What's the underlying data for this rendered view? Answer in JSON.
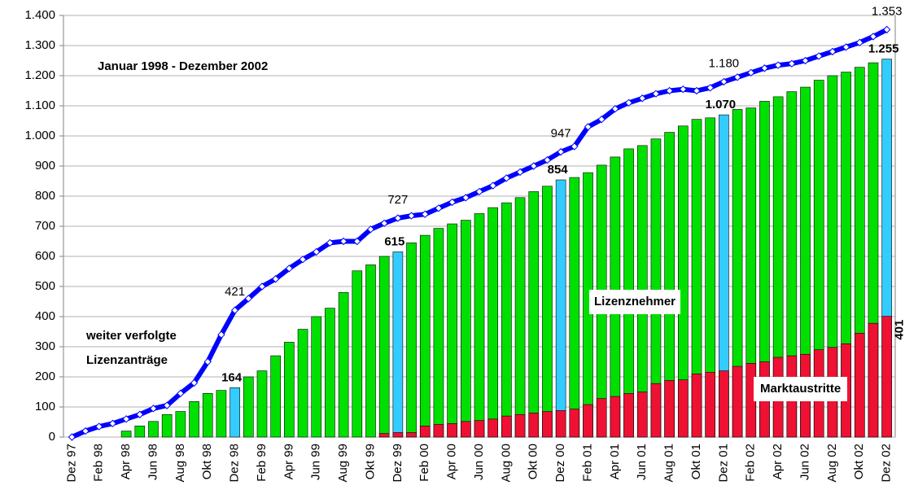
{
  "chart_data": {
    "type": "bar_line",
    "title": "Januar 1998 - Dezember 2002",
    "categories": [
      "Dez 97",
      null,
      "Feb 98",
      null,
      "Apr 98",
      null,
      "Jun 98",
      null,
      "Aug 98",
      null,
      "Okt 98",
      null,
      "Dez 98",
      null,
      "Feb 99",
      null,
      "Apr 99",
      null,
      "Jun 99",
      null,
      "Aug 99",
      null,
      "Okt 99",
      null,
      "Dez 99",
      null,
      "Feb 00",
      null,
      "Apr 00",
      null,
      "Jun 00",
      null,
      "Aug 00",
      null,
      "Okt 00",
      null,
      "Dez 00",
      null,
      "Feb 01",
      null,
      "Apr 01",
      null,
      "Jun 01",
      null,
      "Aug 01",
      null,
      "Okt 01",
      null,
      "Dez 01",
      null,
      "Feb 02",
      null,
      "Apr 02",
      null,
      "Jun 02",
      null,
      "Aug 02",
      null,
      "Okt 02",
      null,
      "Dez 02"
    ],
    "series": [
      {
        "name": "Lizenznehmer",
        "kind": "bar",
        "color": "#00e000",
        "highlight_color": "#33ccff",
        "values": [
          0,
          0,
          0,
          0,
          20,
          37,
          52,
          75,
          85,
          118,
          145,
          155,
          164,
          200,
          220,
          270,
          315,
          358,
          400,
          428,
          480,
          552,
          572,
          600,
          615,
          645,
          670,
          693,
          708,
          720,
          742,
          762,
          778,
          795,
          815,
          833,
          854,
          862,
          878,
          903,
          930,
          957,
          968,
          990,
          1012,
          1033,
          1055,
          1060,
          1070,
          1088,
          1093,
          1115,
          1130,
          1147,
          1162,
          1185,
          1200,
          1212,
          1228,
          1243,
          1255
        ],
        "value_labels": [
          null,
          null,
          null,
          null,
          null,
          null,
          null,
          null,
          null,
          null,
          null,
          null,
          "164",
          null,
          null,
          null,
          null,
          null,
          null,
          null,
          null,
          null,
          null,
          null,
          "615",
          null,
          null,
          null,
          null,
          null,
          null,
          null,
          null,
          null,
          null,
          null,
          "854",
          null,
          null,
          null,
          null,
          null,
          null,
          null,
          null,
          null,
          null,
          null,
          "1.070",
          null,
          null,
          null,
          null,
          null,
          null,
          null,
          null,
          null,
          null,
          null,
          "1.255"
        ]
      },
      {
        "name": "Marktaustritte",
        "kind": "bar",
        "color": "#ee1133",
        "values": [
          null,
          null,
          null,
          null,
          null,
          null,
          null,
          null,
          null,
          null,
          null,
          null,
          null,
          null,
          null,
          null,
          null,
          null,
          null,
          null,
          null,
          null,
          null,
          12,
          15,
          15,
          37,
          42,
          45,
          52,
          55,
          60,
          70,
          75,
          80,
          85,
          88,
          93,
          108,
          128,
          135,
          145,
          150,
          178,
          188,
          190,
          210,
          215,
          220,
          235,
          245,
          250,
          265,
          270,
          275,
          290,
          298,
          310,
          345,
          378,
          401
        ],
        "value_labels": [
          null,
          null,
          null,
          null,
          null,
          null,
          null,
          null,
          null,
          null,
          null,
          null,
          null,
          null,
          null,
          null,
          null,
          null,
          null,
          null,
          null,
          null,
          null,
          null,
          null,
          null,
          null,
          null,
          null,
          null,
          null,
          null,
          null,
          null,
          null,
          null,
          null,
          null,
          null,
          null,
          null,
          null,
          null,
          null,
          null,
          null,
          null,
          null,
          null,
          null,
          null,
          null,
          null,
          null,
          null,
          null,
          null,
          null,
          null,
          null,
          "401"
        ]
      },
      {
        "name": "weiter verfolgte Lizenzanträge",
        "kind": "line",
        "color": "#0000ff",
        "values": [
          0,
          20,
          35,
          45,
          60,
          75,
          95,
          105,
          145,
          180,
          250,
          340,
          421,
          460,
          500,
          525,
          560,
          590,
          615,
          645,
          650,
          650,
          690,
          710,
          727,
          735,
          740,
          760,
          780,
          795,
          815,
          835,
          860,
          880,
          900,
          920,
          947,
          965,
          1030,
          1055,
          1090,
          1110,
          1125,
          1140,
          1150,
          1155,
          1150,
          1160,
          1180,
          1195,
          1210,
          1225,
          1235,
          1240,
          1250,
          1265,
          1280,
          1295,
          1310,
          1330,
          1353
        ],
        "value_labels": [
          null,
          null,
          null,
          null,
          null,
          null,
          null,
          null,
          null,
          null,
          null,
          null,
          "421",
          null,
          null,
          null,
          null,
          null,
          null,
          null,
          null,
          null,
          null,
          null,
          "727",
          null,
          null,
          null,
          null,
          null,
          null,
          null,
          null,
          null,
          null,
          null,
          "947",
          null,
          null,
          null,
          null,
          null,
          null,
          null,
          null,
          null,
          null,
          null,
          "1.180",
          null,
          null,
          null,
          null,
          null,
          null,
          null,
          null,
          null,
          null,
          null,
          "1.353"
        ]
      }
    ],
    "ylim": [
      0,
      1400
    ],
    "yticks": [
      0,
      100,
      200,
      300,
      400,
      500,
      600,
      700,
      800,
      900,
      {
        "value": 1000,
        "label": "1.000"
      },
      {
        "value": 1100,
        "label": "1.100"
      },
      {
        "value": 1200,
        "label": "1.200"
      },
      {
        "value": 1300,
        "label": "1.300"
      },
      {
        "value": 1400,
        "label": "1.400"
      }
    ],
    "grid": true
  }
}
